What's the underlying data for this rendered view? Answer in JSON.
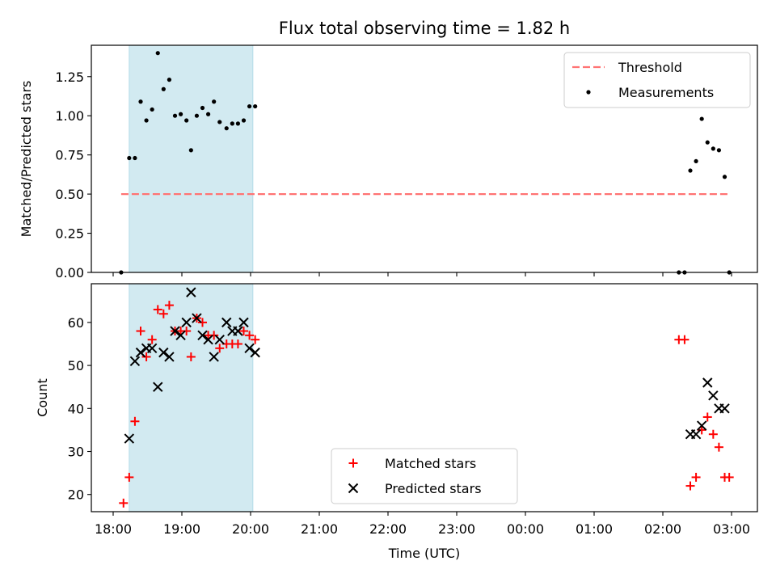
{
  "title": "Flux total observing time = 1.82 h",
  "chart_data": [
    {
      "type": "scatter",
      "ylabel": "Matched/Predicted stars",
      "ylim": [
        0,
        1.45
      ],
      "yticks": [
        "0.00",
        "0.25",
        "0.50",
        "0.75",
        "1.00",
        "1.25"
      ],
      "legend_position": "top-right",
      "threshold": {
        "name": "Threshold",
        "value": 0.5,
        "x_start": "18:07",
        "x_end": "02:58",
        "color": "#ff7373"
      },
      "shaded_region": {
        "x_start": "18:14",
        "x_end": "20:02",
        "color": "#add8e6"
      },
      "series": [
        {
          "name": "Measurements",
          "color": "#000000",
          "points": [
            [
              "18:07",
              0.0
            ],
            [
              "18:14",
              0.73
            ],
            [
              "18:19",
              0.73
            ],
            [
              "18:24",
              1.09
            ],
            [
              "18:29",
              0.97
            ],
            [
              "18:34",
              1.04
            ],
            [
              "18:39",
              1.4
            ],
            [
              "18:44",
              1.17
            ],
            [
              "18:49",
              1.23
            ],
            [
              "18:54",
              1.0
            ],
            [
              "18:59",
              1.01
            ],
            [
              "19:04",
              0.97
            ],
            [
              "19:08",
              0.78
            ],
            [
              "19:13",
              1.0
            ],
            [
              "19:18",
              1.05
            ],
            [
              "19:23",
              1.01
            ],
            [
              "19:28",
              1.09
            ],
            [
              "19:33",
              0.96
            ],
            [
              "19:39",
              0.92
            ],
            [
              "19:44",
              0.95
            ],
            [
              "19:49",
              0.95
            ],
            [
              "19:54",
              0.97
            ],
            [
              "19:59",
              1.06
            ],
            [
              "20:04",
              1.06
            ],
            [
              "02:14",
              0.0
            ],
            [
              "02:19",
              0.0
            ],
            [
              "02:24",
              0.65
            ],
            [
              "02:29",
              0.71
            ],
            [
              "02:34",
              0.98
            ],
            [
              "02:39",
              0.83
            ],
            [
              "02:44",
              0.79
            ],
            [
              "02:49",
              0.78
            ],
            [
              "02:54",
              0.61
            ],
            [
              "02:58",
              0.0
            ]
          ]
        }
      ]
    },
    {
      "type": "scatter",
      "xlabel": "Time (UTC)",
      "ylabel": "Count",
      "ylim": [
        16,
        69
      ],
      "yticks": [
        "20",
        "30",
        "40",
        "50",
        "60"
      ],
      "xticks": [
        "18:00",
        "19:00",
        "20:00",
        "21:00",
        "22:00",
        "23:00",
        "00:00",
        "01:00",
        "02:00",
        "03:00"
      ],
      "legend_position": "lower-center",
      "shaded_region": {
        "x_start": "18:14",
        "x_end": "20:02",
        "color": "#add8e6"
      },
      "series": [
        {
          "name": "Matched stars",
          "marker": "plus",
          "color": "#ff0000",
          "points": [
            [
              "18:09",
              18
            ],
            [
              "18:14",
              24
            ],
            [
              "18:19",
              37
            ],
            [
              "18:24",
              58
            ],
            [
              "18:29",
              52
            ],
            [
              "18:34",
              56
            ],
            [
              "18:39",
              63
            ],
            [
              "18:44",
              62
            ],
            [
              "18:49",
              64
            ],
            [
              "18:54",
              58
            ],
            [
              "18:59",
              58
            ],
            [
              "19:04",
              58
            ],
            [
              "19:08",
              52
            ],
            [
              "19:13",
              61
            ],
            [
              "19:18",
              60
            ],
            [
              "19:23",
              57
            ],
            [
              "19:28",
              57
            ],
            [
              "19:33",
              54
            ],
            [
              "19:39",
              55
            ],
            [
              "19:44",
              55
            ],
            [
              "19:49",
              55
            ],
            [
              "19:54",
              58
            ],
            [
              "19:59",
              57
            ],
            [
              "20:04",
              56
            ],
            [
              "02:14",
              56
            ],
            [
              "02:19",
              56
            ],
            [
              "02:24",
              22
            ],
            [
              "02:29",
              24
            ],
            [
              "02:34",
              35
            ],
            [
              "02:39",
              38
            ],
            [
              "02:44",
              34
            ],
            [
              "02:49",
              31
            ],
            [
              "02:54",
              24
            ],
            [
              "02:58",
              24
            ]
          ]
        },
        {
          "name": "Predicted stars",
          "marker": "x",
          "color": "#000000",
          "points": [
            [
              "18:14",
              33
            ],
            [
              "18:19",
              51
            ],
            [
              "18:24",
              53
            ],
            [
              "18:29",
              54
            ],
            [
              "18:34",
              54
            ],
            [
              "18:39",
              45
            ],
            [
              "18:44",
              53
            ],
            [
              "18:49",
              52
            ],
            [
              "18:54",
              58
            ],
            [
              "18:59",
              57
            ],
            [
              "19:04",
              60
            ],
            [
              "19:08",
              67
            ],
            [
              "19:13",
              61
            ],
            [
              "19:18",
              57
            ],
            [
              "19:23",
              56
            ],
            [
              "19:28",
              52
            ],
            [
              "19:33",
              56
            ],
            [
              "19:39",
              60
            ],
            [
              "19:44",
              58
            ],
            [
              "19:49",
              58
            ],
            [
              "19:54",
              60
            ],
            [
              "19:59",
              54
            ],
            [
              "20:04",
              53
            ],
            [
              "02:24",
              34
            ],
            [
              "02:29",
              34
            ],
            [
              "02:34",
              36
            ],
            [
              "02:39",
              46
            ],
            [
              "02:44",
              43
            ],
            [
              "02:49",
              40
            ],
            [
              "02:54",
              40
            ]
          ]
        }
      ]
    }
  ]
}
